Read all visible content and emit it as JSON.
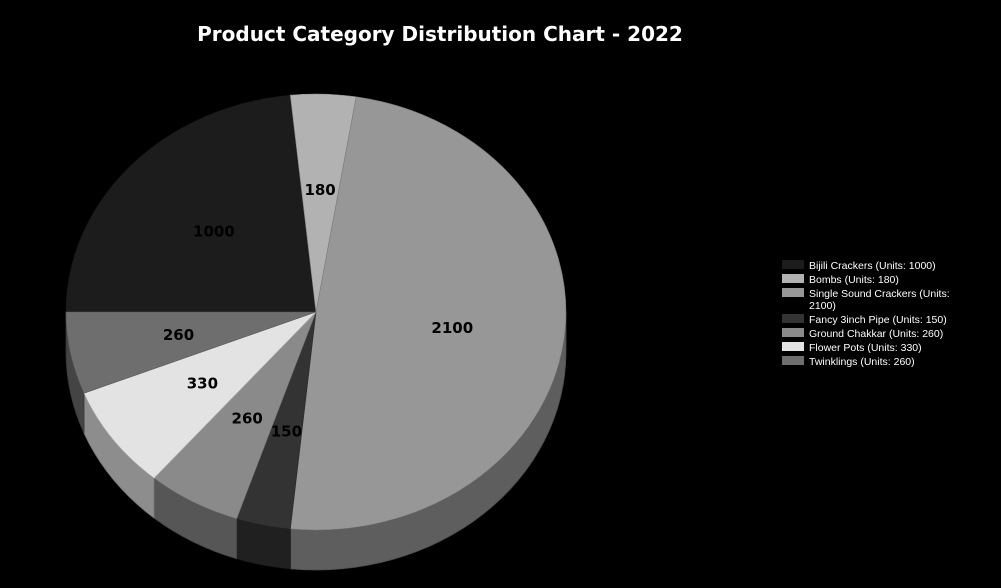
{
  "chart_data": {
    "type": "pie",
    "title": "Product Category Distribution Chart - 2022",
    "start_category": "Bijili Crackers",
    "legend_position": "right",
    "slices": [
      {
        "category": "Bijili Crackers",
        "value": 1000,
        "label": "1000",
        "legend": "Bijili Crackers (Units: 1000)",
        "color": "#1c1c1c"
      },
      {
        "category": "Bombs",
        "value": 180,
        "label": "180",
        "legend": "Bombs (Units: 180)",
        "color": "#b2b2b2"
      },
      {
        "category": "Single Sound Crackers",
        "value": 2100,
        "label": "2100",
        "legend": "Single Sound Crackers (Units: 2100)",
        "color": "#979797"
      },
      {
        "category": "Fancy 3inch Pipe",
        "value": 150,
        "label": "150",
        "legend": "Fancy 3inch Pipe (Units: 150)",
        "color": "#333333"
      },
      {
        "category": "Ground Chakkar",
        "value": 260,
        "label": "260",
        "legend": "Ground Chakkar (Units: 260)",
        "color": "#8a8a8a"
      },
      {
        "category": "Flower Pots",
        "value": 330,
        "label": "330",
        "legend": "Flower Pots (Units: 330)",
        "color": "#e3e3e3"
      },
      {
        "category": "Twinklings",
        "value": 260,
        "label": "260",
        "legend": "Twinklings (Units: 260)",
        "color": "#6e6e6e"
      }
    ]
  }
}
